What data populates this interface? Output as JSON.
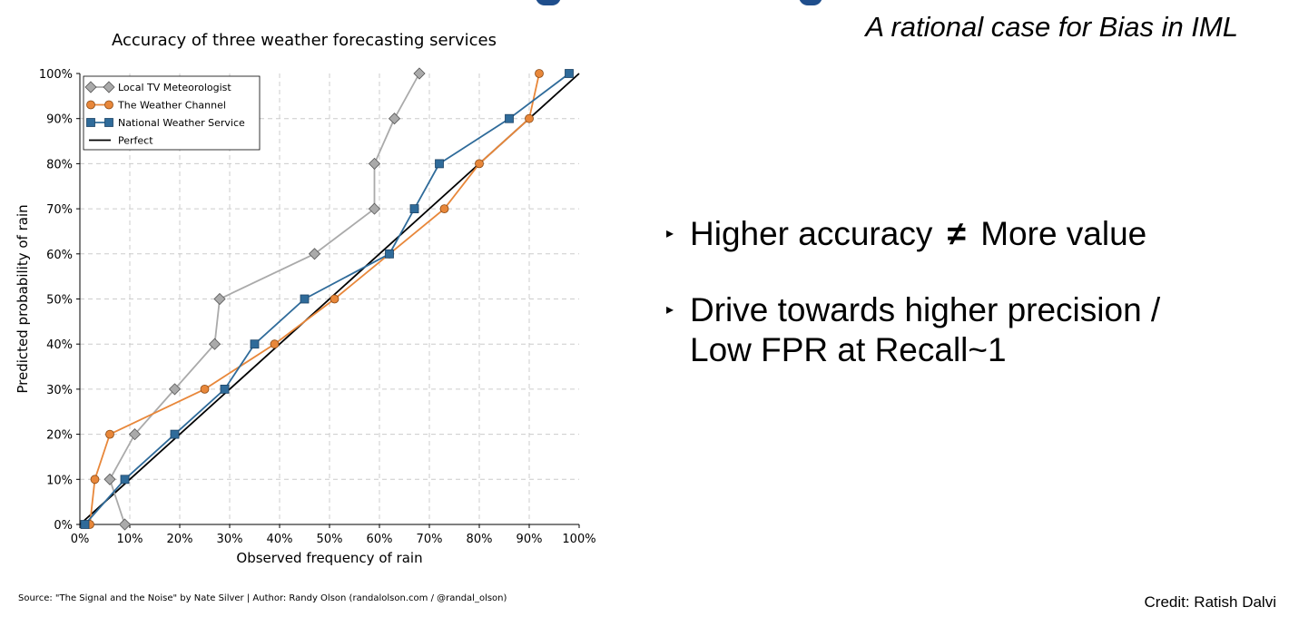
{
  "slide": {
    "subtitle": "A rational case for Bias in IML",
    "bullets": [
      {
        "marker": "▸",
        "before": "Higher accuracy",
        "symbol": "≠",
        "after": "More value"
      },
      {
        "marker": "▸",
        "text": "Drive towards higher precision / Low FPR at Recall~1"
      }
    ],
    "bullet2_line1": "Drive towards higher precision /",
    "bullet2_line2": "Low FPR at Recall~1",
    "source": "Source: \"The Signal and the Noise\" by Nate Silver | Author: Randy Olson (randalolson.com / @randal_olson)",
    "credit": "Credit:  Ratish Dalvi",
    "title_color": "#1f4e8c"
  },
  "chart_data": {
    "type": "line",
    "title": "Accuracy of three weather forecasting services",
    "xlabel": "Observed frequency of rain",
    "ylabel": "Predicted probability of rain",
    "xlim": [
      0,
      100
    ],
    "ylim": [
      0,
      100
    ],
    "x_ticks": [
      "0%",
      "10%",
      "20%",
      "30%",
      "40%",
      "50%",
      "60%",
      "70%",
      "80%",
      "90%",
      "100%"
    ],
    "y_ticks": [
      "0%",
      "10%",
      "20%",
      "30%",
      "40%",
      "50%",
      "60%",
      "70%",
      "80%",
      "90%",
      "100%"
    ],
    "grid": true,
    "legend_position": "top-left",
    "series": [
      {
        "name": "Local TV Meteorologist",
        "color": "#aaaaaa",
        "marker": "diamond",
        "points": [
          [
            9,
            0
          ],
          [
            6,
            10
          ],
          [
            11,
            20
          ],
          [
            19,
            30
          ],
          [
            27,
            40
          ],
          [
            28,
            50
          ],
          [
            47,
            60
          ],
          [
            59,
            70
          ],
          [
            59,
            80
          ],
          [
            63,
            90
          ],
          [
            68,
            100
          ]
        ]
      },
      {
        "name": "The Weather Channel",
        "color": "#e8873a",
        "marker": "circle",
        "points": [
          [
            2,
            0
          ],
          [
            3,
            10
          ],
          [
            6,
            20
          ],
          [
            25,
            30
          ],
          [
            39,
            40
          ],
          [
            51,
            50
          ],
          [
            62,
            60
          ],
          [
            73,
            70
          ],
          [
            80,
            80
          ],
          [
            90,
            90
          ],
          [
            92,
            100
          ]
        ]
      },
      {
        "name": "National Weather Service",
        "color": "#2f6b9a",
        "marker": "square",
        "points": [
          [
            1,
            0
          ],
          [
            9,
            10
          ],
          [
            19,
            20
          ],
          [
            29,
            30
          ],
          [
            35,
            40
          ],
          [
            45,
            50
          ],
          [
            62,
            60
          ],
          [
            67,
            70
          ],
          [
            72,
            80
          ],
          [
            86,
            90
          ],
          [
            98,
            100
          ]
        ]
      },
      {
        "name": "Perfect",
        "color": "#000000",
        "marker": "none",
        "points": [
          [
            0,
            0
          ],
          [
            100,
            100
          ]
        ]
      }
    ]
  }
}
